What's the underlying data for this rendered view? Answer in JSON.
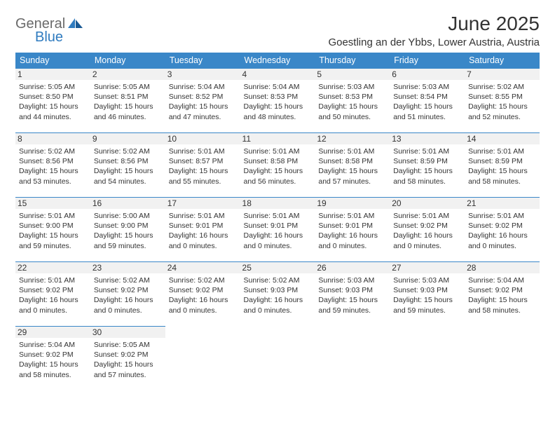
{
  "brand": {
    "general": "General",
    "blue": "Blue"
  },
  "title": "June 2025",
  "location": "Goestling an der Ybbs, Lower Austria, Austria",
  "colors": {
    "header_bg": "#3a87c8",
    "header_text": "#ffffff",
    "rule": "#3a87c8",
    "daynum_bg": "#f1f1f1",
    "text": "#333333",
    "logo_gray": "#6a6a6a",
    "logo_blue": "#2f7bbf"
  },
  "weekdays": [
    "Sunday",
    "Monday",
    "Tuesday",
    "Wednesday",
    "Thursday",
    "Friday",
    "Saturday"
  ],
  "weeks": [
    [
      {
        "n": "1",
        "sr": "5:05 AM",
        "ss": "8:50 PM",
        "dl": "15 hours and 44 minutes."
      },
      {
        "n": "2",
        "sr": "5:05 AM",
        "ss": "8:51 PM",
        "dl": "15 hours and 46 minutes."
      },
      {
        "n": "3",
        "sr": "5:04 AM",
        "ss": "8:52 PM",
        "dl": "15 hours and 47 minutes."
      },
      {
        "n": "4",
        "sr": "5:04 AM",
        "ss": "8:53 PM",
        "dl": "15 hours and 48 minutes."
      },
      {
        "n": "5",
        "sr": "5:03 AM",
        "ss": "8:53 PM",
        "dl": "15 hours and 50 minutes."
      },
      {
        "n": "6",
        "sr": "5:03 AM",
        "ss": "8:54 PM",
        "dl": "15 hours and 51 minutes."
      },
      {
        "n": "7",
        "sr": "5:02 AM",
        "ss": "8:55 PM",
        "dl": "15 hours and 52 minutes."
      }
    ],
    [
      {
        "n": "8",
        "sr": "5:02 AM",
        "ss": "8:56 PM",
        "dl": "15 hours and 53 minutes."
      },
      {
        "n": "9",
        "sr": "5:02 AM",
        "ss": "8:56 PM",
        "dl": "15 hours and 54 minutes."
      },
      {
        "n": "10",
        "sr": "5:01 AM",
        "ss": "8:57 PM",
        "dl": "15 hours and 55 minutes."
      },
      {
        "n": "11",
        "sr": "5:01 AM",
        "ss": "8:58 PM",
        "dl": "15 hours and 56 minutes."
      },
      {
        "n": "12",
        "sr": "5:01 AM",
        "ss": "8:58 PM",
        "dl": "15 hours and 57 minutes."
      },
      {
        "n": "13",
        "sr": "5:01 AM",
        "ss": "8:59 PM",
        "dl": "15 hours and 58 minutes."
      },
      {
        "n": "14",
        "sr": "5:01 AM",
        "ss": "8:59 PM",
        "dl": "15 hours and 58 minutes."
      }
    ],
    [
      {
        "n": "15",
        "sr": "5:01 AM",
        "ss": "9:00 PM",
        "dl": "15 hours and 59 minutes."
      },
      {
        "n": "16",
        "sr": "5:00 AM",
        "ss": "9:00 PM",
        "dl": "15 hours and 59 minutes."
      },
      {
        "n": "17",
        "sr": "5:01 AM",
        "ss": "9:01 PM",
        "dl": "16 hours and 0 minutes."
      },
      {
        "n": "18",
        "sr": "5:01 AM",
        "ss": "9:01 PM",
        "dl": "16 hours and 0 minutes."
      },
      {
        "n": "19",
        "sr": "5:01 AM",
        "ss": "9:01 PM",
        "dl": "16 hours and 0 minutes."
      },
      {
        "n": "20",
        "sr": "5:01 AM",
        "ss": "9:02 PM",
        "dl": "16 hours and 0 minutes."
      },
      {
        "n": "21",
        "sr": "5:01 AM",
        "ss": "9:02 PM",
        "dl": "16 hours and 0 minutes."
      }
    ],
    [
      {
        "n": "22",
        "sr": "5:01 AM",
        "ss": "9:02 PM",
        "dl": "16 hours and 0 minutes."
      },
      {
        "n": "23",
        "sr": "5:02 AM",
        "ss": "9:02 PM",
        "dl": "16 hours and 0 minutes."
      },
      {
        "n": "24",
        "sr": "5:02 AM",
        "ss": "9:02 PM",
        "dl": "16 hours and 0 minutes."
      },
      {
        "n": "25",
        "sr": "5:02 AM",
        "ss": "9:03 PM",
        "dl": "16 hours and 0 minutes."
      },
      {
        "n": "26",
        "sr": "5:03 AM",
        "ss": "9:03 PM",
        "dl": "15 hours and 59 minutes."
      },
      {
        "n": "27",
        "sr": "5:03 AM",
        "ss": "9:03 PM",
        "dl": "15 hours and 59 minutes."
      },
      {
        "n": "28",
        "sr": "5:04 AM",
        "ss": "9:02 PM",
        "dl": "15 hours and 58 minutes."
      }
    ],
    [
      {
        "n": "29",
        "sr": "5:04 AM",
        "ss": "9:02 PM",
        "dl": "15 hours and 58 minutes."
      },
      {
        "n": "30",
        "sr": "5:05 AM",
        "ss": "9:02 PM",
        "dl": "15 hours and 57 minutes."
      },
      null,
      null,
      null,
      null,
      null
    ]
  ],
  "labels": {
    "sunrise": "Sunrise: ",
    "sunset": "Sunset: ",
    "daylight": "Daylight: "
  }
}
